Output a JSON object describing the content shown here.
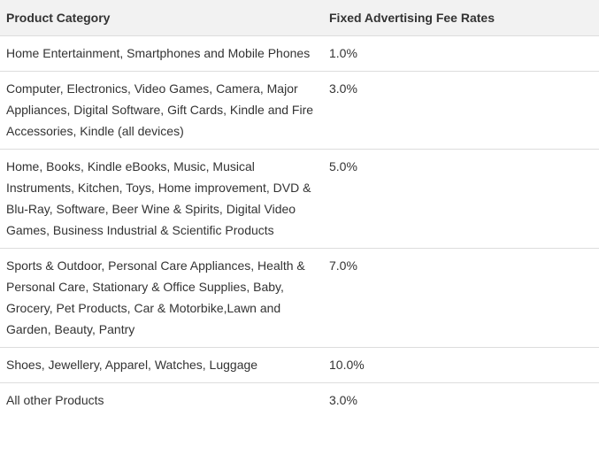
{
  "table": {
    "headers": [
      "Product Category",
      "Fixed Advertising Fee Rates"
    ],
    "rows": [
      {
        "category": "Home Entertainment, Smartphones and Mobile Phones",
        "rate": "1.0%"
      },
      {
        "category": "Computer, Electronics, Video Games, Camera, Major Appliances, Digital Software, Gift Cards, Kindle and Fire Accessories, Kindle (all devices)",
        "rate": "3.0%"
      },
      {
        "category": "Home, Books, Kindle eBooks, Music, Musical Instruments, Kitchen, Toys, Home improvement, DVD & Blu-Ray, Software, Beer Wine & Spirits, Digital Video Games, Business Industrial & Scientific Products",
        "rate": "5.0%"
      },
      {
        "category": "Sports & Outdoor, Personal Care Appliances, Health & Personal Care, Stationary & Office Supplies, Baby, Grocery, Pet Products, Car & Motorbike,Lawn and Garden, Beauty, Pantry",
        "rate": "7.0%"
      },
      {
        "category": "Shoes, Jewellery, Apparel, Watches, Luggage",
        "rate": "10.0%"
      },
      {
        "category": "All other Products",
        "rate": "3.0%"
      }
    ]
  },
  "colors": {
    "header_background": "#f2f2f2",
    "border": "#dddddd",
    "text": "#333333"
  }
}
